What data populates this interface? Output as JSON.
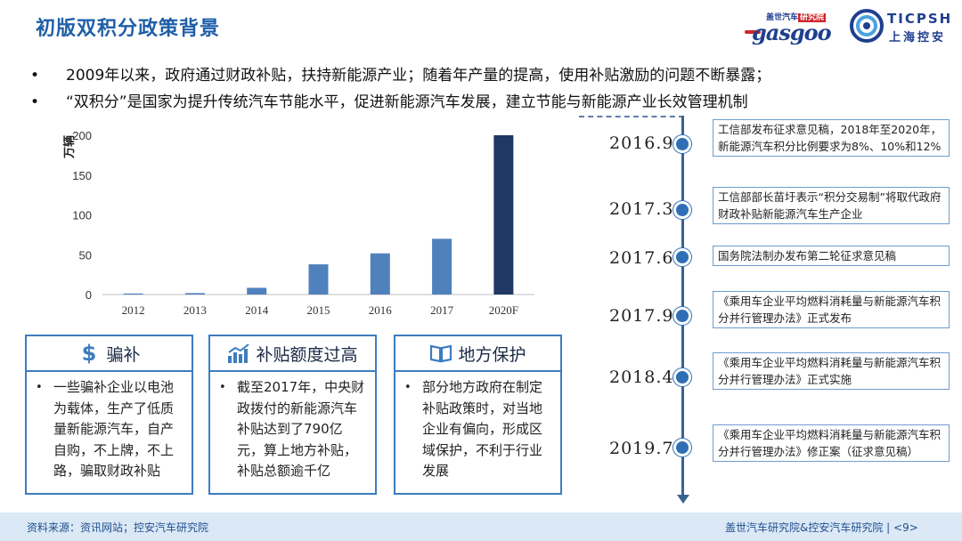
{
  "header": {
    "title": "初版双积分政策背景",
    "logo_gasgoo": {
      "tag_left": "盖世汽车",
      "tag_right": "研究院",
      "word": "gasgoo"
    },
    "logo_ticp": {
      "en": "TICPSH",
      "zh": "上海控安"
    }
  },
  "bullets": [
    "2009年以来，政府通过财政补贴，扶持新能源产业；随着年产量的提高，使用补贴激励的问题不断暴露；",
    "“双积分”是国家为提升传统汽车节能水平，促进新能源汽车发展，建立节能与新能源产业长效管理机制"
  ],
  "chart_data": {
    "type": "bar",
    "ylabel": "万辆",
    "categories": [
      "2012",
      "2013",
      "2014",
      "2015",
      "2016",
      "2017",
      "2020F"
    ],
    "values": [
      1.3,
      1.8,
      8.4,
      37.9,
      51.7,
      70.0,
      200
    ],
    "ylim": [
      0,
      200
    ],
    "yticks": [
      "0",
      "50",
      "100",
      "150",
      "200"
    ],
    "colors": {
      "normal": "#4f81bd",
      "forecast": "#1f3864"
    }
  },
  "problems": [
    {
      "icon": "dollar-icon",
      "title": "骗补",
      "text": "一些骗补企业以电池为载体，生产了低质量新能源汽车，自产自购，不上牌，不上路，骗取财政补贴"
    },
    {
      "icon": "bar-chart-icon",
      "title": "补贴额度过高",
      "text": "截至2017年，中央财政拨付的新能源汽车补贴达到了790亿元，算上地方补贴，补贴总额逾千亿"
    },
    {
      "icon": "book-icon",
      "title": "地方保护",
      "text": "部分地方政府在制定补贴政策时，对当地企业有偏向，形成区域保护，不利于行业发展"
    }
  ],
  "timeline": [
    {
      "date": "2016.9",
      "text": "工信部发布征求意见稿，2018年至2020年，新能源汽车积分比例要求为8%、10%和12%"
    },
    {
      "date": "2017.3",
      "text": "工信部部长苗圩表示“积分交易制”将取代政府财政补贴新能源汽车生产企业"
    },
    {
      "date": "2017.6",
      "text": "国务院法制办发布第二轮征求意见稿"
    },
    {
      "date": "2017.9",
      "text": "《乘用车企业平均燃料消耗量与新能源汽车积分并行管理办法》正式发布"
    },
    {
      "date": "2018.4",
      "text": "《乘用车企业平均燃料消耗量与新能源汽车积分并行管理办法》正式实施"
    },
    {
      "date": "2019.7",
      "text": "《乘用车企业平均燃料消耗量与新能源汽车积分并行管理办法》修正案（征求意见稿）"
    }
  ],
  "footer": {
    "source": "资料来源：资讯网站；控安汽车研究院",
    "right": "盖世汽车研究院&控安汽车研究院 | <9>"
  }
}
